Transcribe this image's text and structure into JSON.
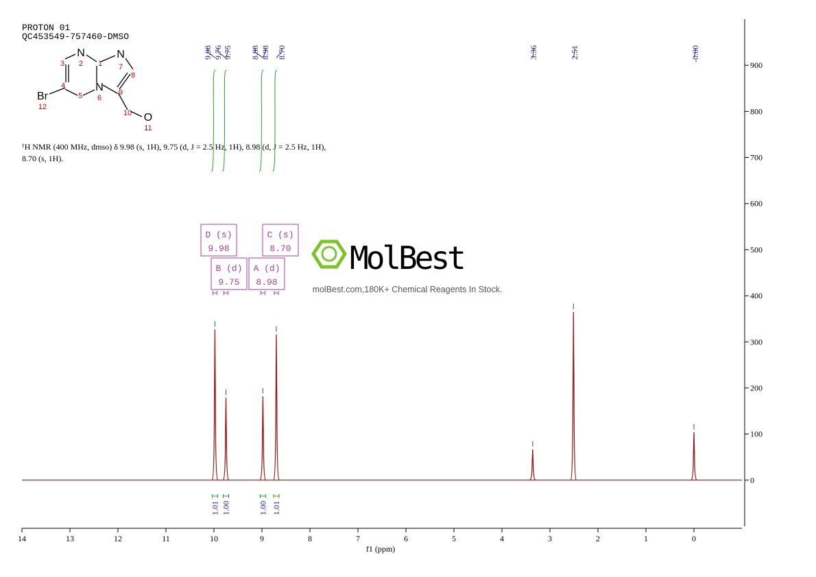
{
  "header": {
    "title": "PROTON 01",
    "sample": "QC453549-757460-DMSO"
  },
  "molecule": {
    "atoms": [
      {
        "number": "1"
      },
      {
        "symbol": "N",
        "number": "2"
      },
      {
        "number": "3"
      },
      {
        "number": "4"
      },
      {
        "number": "5"
      },
      {
        "symbol": "N",
        "number": "6"
      },
      {
        "symbol": "N",
        "number": "7"
      },
      {
        "number": "8"
      },
      {
        "number": "9"
      },
      {
        "number": "10"
      },
      {
        "symbol": "O",
        "number": "11"
      },
      {
        "symbol": "Br",
        "number": "12"
      }
    ]
  },
  "description": [
    "¹H NMR (400 MHz, dmso) δ 9.98 (s, 1H), 9.75 (d, J = 2.5 Hz, 1H), 8.98 (d, J = 2.5 Hz, 1H),",
    "8.70 (s, 1H)."
  ],
  "watermark": {
    "brand": "MolBest",
    "tagline": "molBest.com,180K+ Chemical Reagents In Stock."
  },
  "chart_data": {
    "type": "nmr",
    "xlabel": "f1 (ppm)",
    "xlim": [
      14,
      -1
    ],
    "xticks": [
      14,
      13,
      12,
      11,
      10,
      9,
      8,
      7,
      6,
      5,
      4,
      3,
      2,
      1,
      0
    ],
    "ylim": [
      -100,
      1000
    ],
    "yticks": [
      0,
      100,
      200,
      300,
      400,
      500,
      600,
      700,
      800,
      900
    ],
    "color": "#8b1a1a",
    "peaks": {
      "x": [
        9.98,
        9.75,
        8.98,
        8.7,
        3.36,
        2.51,
        0.0
      ],
      "values": [
        327,
        179,
        182,
        316,
        67,
        365,
        104
      ]
    },
    "peak_labels": [
      {
        "value": 9.98,
        "label": "9.98"
      },
      {
        "value": 9.76,
        "label": "9.76"
      },
      {
        "value": 9.75,
        "label": "9.75"
      },
      {
        "value": 8.98,
        "label": "8.98"
      },
      {
        "value": 8.98,
        "label": "8.98"
      },
      {
        "value": 8.7,
        "label": "8.70"
      },
      {
        "value": 3.36,
        "label": "3.36"
      },
      {
        "value": 2.51,
        "label": "2.51"
      },
      {
        "value": 0,
        "label": "-0.00"
      }
    ],
    "multiplets": [
      {
        "name": "D (s)",
        "shift": {
          "value": 9.98,
          "label": "9.98"
        },
        "integral": {
          "value": 1.01,
          "label": "1.01"
        }
      },
      {
        "name": "B (d)",
        "shift": {
          "value": 9.75,
          "label": "9.75"
        },
        "integral": {
          "value": 1.0,
          "label": "1.00"
        }
      },
      {
        "name": "A (d)",
        "shift": {
          "value": 8.98,
          "label": "8.98"
        },
        "integral": {
          "value": 1.0,
          "label": "1.00"
        }
      },
      {
        "name": "C (s)",
        "shift": {
          "value": 8.7,
          "label": "8.70"
        },
        "integral": {
          "value": 1.01,
          "label": "1.01"
        }
      }
    ]
  }
}
